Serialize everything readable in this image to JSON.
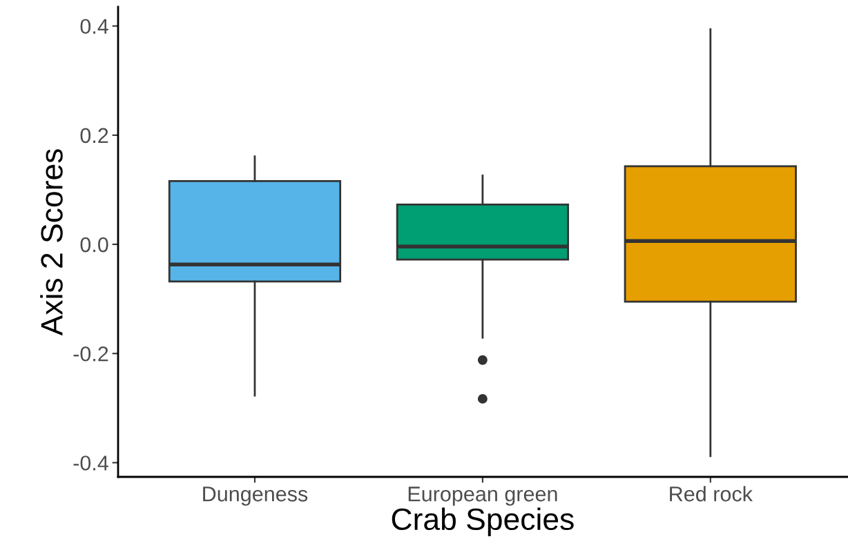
{
  "chart_data": {
    "type": "box",
    "xlabel": "Crab Species",
    "ylabel": "Axis 2 Scores",
    "categories": [
      "Dungeness",
      "European green",
      "Red rock"
    ],
    "colors": [
      "#56b4e9",
      "#009e73",
      "#e69f00"
    ],
    "boxes": [
      {
        "low": -0.277,
        "q1": -0.068,
        "median": -0.037,
        "q3": 0.116,
        "high": 0.161
      },
      {
        "low": -0.171,
        "q1": -0.028,
        "median": -0.004,
        "q3": 0.073,
        "high": 0.126,
        "outliers": [
          -0.212,
          -0.283
        ]
      },
      {
        "low": -0.388,
        "q1": -0.105,
        "median": 0.006,
        "q3": 0.143,
        "high": 0.394
      }
    ],
    "ylim": [
      -0.426,
      0.435
    ],
    "yticks": [
      {
        "value": -0.4,
        "label": "-0.4"
      },
      {
        "value": -0.2,
        "label": "-0.2"
      },
      {
        "value": 0.0,
        "label": "0.0"
      },
      {
        "value": 0.2,
        "label": "0.2"
      },
      {
        "value": 0.4,
        "label": "0.4"
      }
    ],
    "grid": false,
    "legend": false
  }
}
